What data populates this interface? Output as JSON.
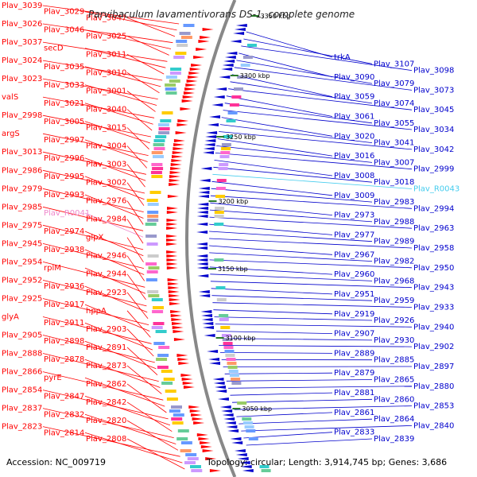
{
  "title": "Parvibaculum lavamentivorans DS-1, complete genome",
  "footer": {
    "accession": "Accession: NC_009719",
    "summary": "Topology: circular; Length: 3,914,745 bp; Genes: 3,686"
  },
  "colors": {
    "forward": "#ff0000",
    "reverse": "#0000cc",
    "pseudo_forward": "#ee88cc",
    "pseudo_reverse": "#44ccee",
    "backbone": "#888888",
    "tick": "#2a7a2a"
  },
  "ticks": [
    "3350 kbp",
    "3300 kbp",
    "3250 kbp",
    "3200 kbp",
    "3150 kbp",
    "3100 kbp",
    "3050 kbp"
  ],
  "left_labels": [
    "Plav_3039",
    "Plav_3029",
    "Plav_3047",
    "Plav_3026",
    "Plav_3046",
    "Plav_3025",
    "Plav_3037",
    "secD",
    "Plav_3011",
    "Plav_3024",
    "Plav_3035",
    "Plav_3010",
    "Plav_3023",
    "Plav_3033",
    "Plav_3001",
    "valS",
    "Plav_3021",
    "Plav_3040",
    "Plav_2998",
    "Plav_3005",
    "Plav_3015",
    "argS",
    "Plav_2997",
    "Plav_3004",
    "Plav_3013",
    "Plav_2996",
    "Plav_3003",
    "Plav_2986",
    "Plav_2995",
    "Plav_3002",
    "Plav_2979",
    "Plav_2993",
    "Plav_2976",
    "Plav_2985",
    "Plav_R0041",
    "Plav_2984",
    "Plav_2975",
    "Plav_2974",
    "glpX",
    "Plav_2945",
    "Plav_2938",
    "Plav_2946",
    "Plav_2954",
    "rplM",
    "Plav_2944",
    "Plav_2952",
    "Plav_2936",
    "Plav_2923",
    "Plav_2925",
    "Plav_2917",
    "hppA",
    "glyA",
    "Plav_2911",
    "Plav_2903",
    "Plav_2905",
    "Plav_2898",
    "Plav_2891",
    "Plav_2888",
    "Plav_2878",
    "Plav_2873",
    "Plav_2866",
    "pyrE",
    "Plav_2862",
    "Plav_2854",
    "Plav_2847",
    "Plav_2842",
    "Plav_2837",
    "Plav_2832",
    "Plav_2820",
    "Plav_2823",
    "Plav_2814",
    "Plav_2808"
  ],
  "right_labels": [
    "trkA",
    "Plav_3107",
    "Plav_3098",
    "Plav_3090",
    "Plav_3079",
    "Plav_3073",
    "Plav_3059",
    "Plav_3074",
    "Plav_3045",
    "Plav_3061",
    "Plav_3055",
    "Plav_3034",
    "Plav_3020",
    "Plav_3041",
    "Plav_3042",
    "Plav_3016",
    "Plav_3007",
    "Plav_2999",
    "Plav_3008",
    "Plav_3018",
    "Plav_R0043",
    "Plav_3009",
    "Plav_2983",
    "Plav_2994",
    "Plav_2973",
    "Plav_2988",
    "Plav_2963",
    "Plav_2977",
    "Plav_2989",
    "Plav_2958",
    "Plav_2967",
    "Plav_2982",
    "Plav_2950",
    "Plav_2960",
    "Plav_2968",
    "Plav_2943",
    "Plav_2951",
    "Plav_2959",
    "Plav_2933",
    "Plav_2919",
    "Plav_2926",
    "Plav_2940",
    "Plav_2907",
    "Plav_2930",
    "Plav_2902",
    "Plav_2889",
    "Plav_2885",
    "Plav_2897",
    "Plav_2879",
    "Plav_2865",
    "Plav_2880",
    "Plav_2881",
    "Plav_2860",
    "Plav_2853",
    "Plav_2861",
    "Plav_2864",
    "Plav_2840",
    "Plav_2833",
    "Plav_2839"
  ]
}
